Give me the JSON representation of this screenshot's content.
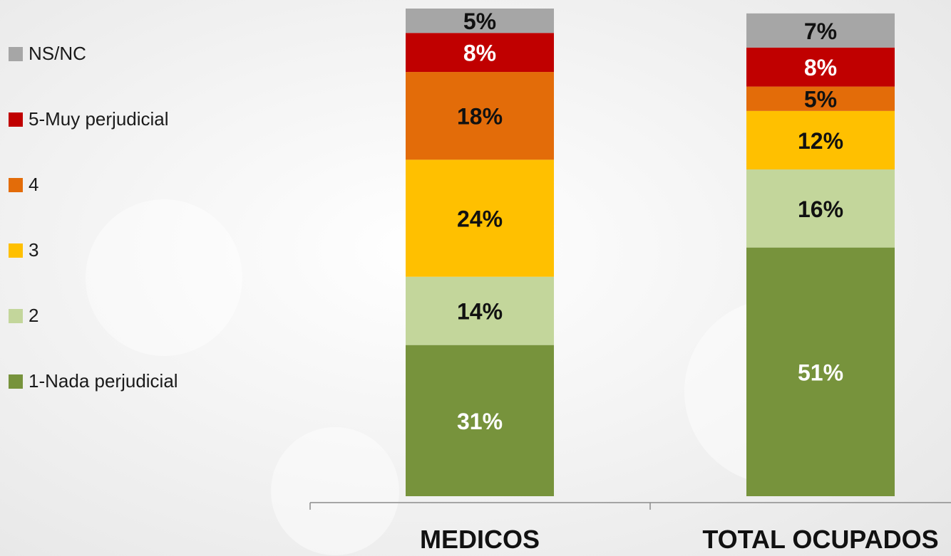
{
  "chart_data": {
    "type": "bar",
    "stacked": true,
    "orientation": "vertical",
    "categories": [
      "MEDICOS",
      "TOTAL OCUPADOS"
    ],
    "series": [
      {
        "name": "1-Nada perjudicial",
        "values": [
          31,
          51
        ],
        "labels": [
          "31%",
          "51%"
        ],
        "color": "#77933c",
        "label_color": "#ffffff"
      },
      {
        "name": "2",
        "values": [
          14,
          16
        ],
        "labels": [
          "14%",
          "16%"
        ],
        "color": "#c3d69b",
        "label_color": "#111111"
      },
      {
        "name": "3",
        "values": [
          24,
          12
        ],
        "labels": [
          "24%",
          "12%"
        ],
        "color": "#ffc000",
        "label_color": "#111111"
      },
      {
        "name": "4",
        "values": [
          18,
          5
        ],
        "labels": [
          "18%",
          "5%"
        ],
        "color": "#e36c09",
        "label_color": "#111111"
      },
      {
        "name": "5-Muy perjudicial",
        "values": [
          8,
          8
        ],
        "labels": [
          "8%",
          "8%"
        ],
        "color": "#c00000",
        "label_color": "#ffffff"
      },
      {
        "name": "NS/NC",
        "values": [
          5,
          7
        ],
        "labels": [
          "5%",
          "7%"
        ],
        "color": "#a6a6a6",
        "label_color": "#111111"
      }
    ],
    "legend_order": [
      "NS/NC",
      "5-Muy perjudicial",
      "4",
      "3",
      "2",
      "1-Nada perjudicial"
    ],
    "legend_position": "left",
    "ylim": [
      0,
      100
    ],
    "title": "",
    "xlabel": "",
    "ylabel": ""
  }
}
